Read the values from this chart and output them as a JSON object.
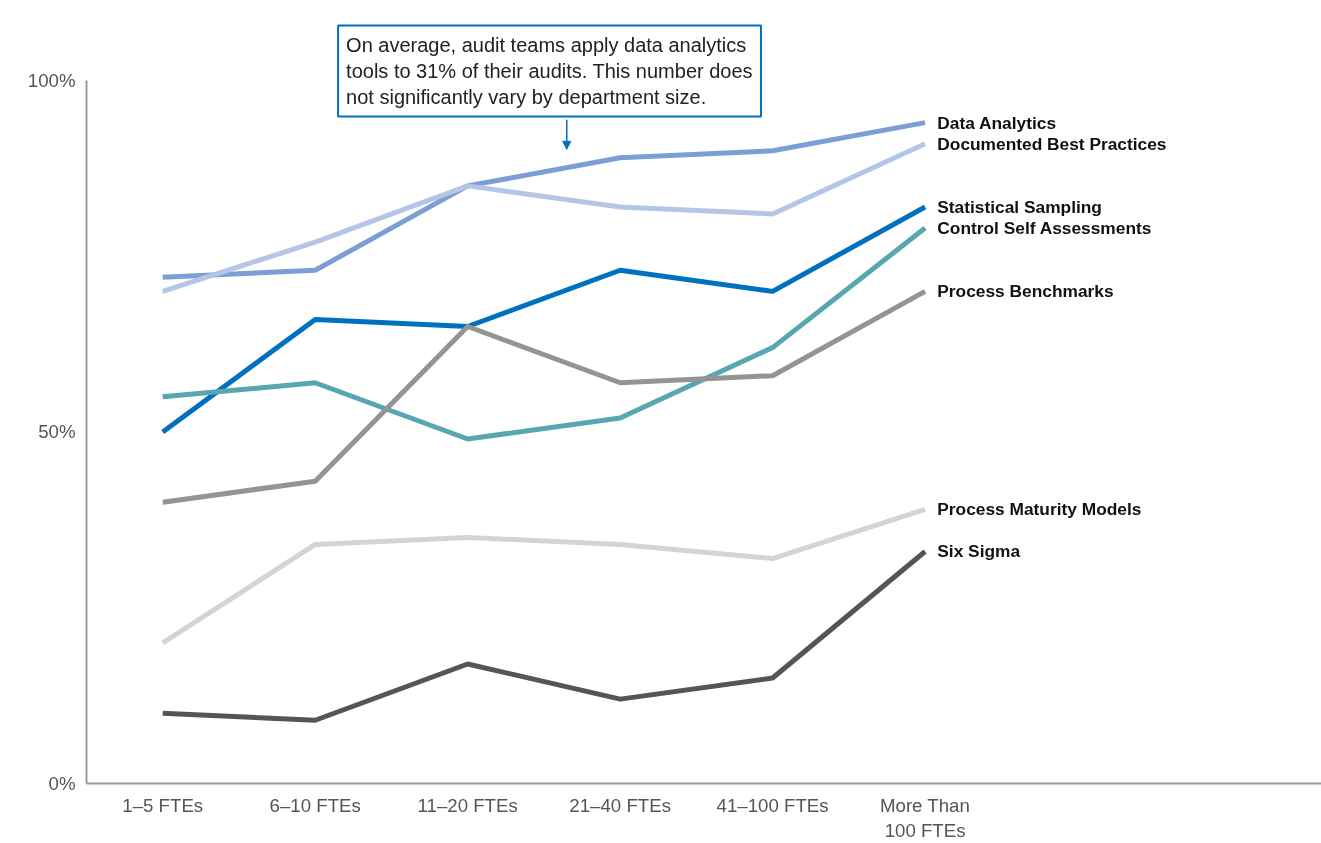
{
  "chart_data": {
    "type": "line",
    "categories": [
      "1–5 FTEs",
      "6–10 FTEs",
      "11–20 FTEs",
      "21–40 FTEs",
      "41–100 FTEs",
      "More Than\n100 FTEs"
    ],
    "series": [
      {
        "name": "Data Analytics",
        "color": "#7b9fd4",
        "values": [
          72,
          73,
          85,
          89,
          90,
          94
        ]
      },
      {
        "name": "Documented Best Practices",
        "color": "#b4c6e7",
        "values": [
          70,
          77,
          85,
          82,
          81,
          91
        ]
      },
      {
        "name": "Statistical Sampling",
        "color": "#0070c0",
        "values": [
          50,
          66,
          65,
          73,
          70,
          82
        ]
      },
      {
        "name": "Control Self Assessments",
        "color": "#58a6b0",
        "values": [
          55,
          57,
          49,
          52,
          62,
          79
        ]
      },
      {
        "name": "Process Benchmarks",
        "color": "#949494",
        "values": [
          40,
          43,
          65,
          57,
          58,
          70
        ]
      },
      {
        "name": "Process Maturity Models",
        "color": "#d4d4d4",
        "values": [
          20,
          34,
          35,
          34,
          32,
          39
        ]
      },
      {
        "name": "Six Sigma",
        "color": "#555555",
        "values": [
          10,
          9,
          17,
          12,
          15,
          33
        ]
      }
    ],
    "ylim": [
      0,
      100
    ],
    "yticks": [
      {
        "value": 0,
        "label": "0%"
      },
      {
        "value": 50,
        "label": "50%"
      },
      {
        "value": 100,
        "label": "100%"
      }
    ],
    "grid": false,
    "legend": false,
    "marker": "none",
    "line_style": "solid",
    "annotations": [
      "On average, audit teams apply data analytics tools to 31% of their audits. This number does not significantly vary by department size."
    ]
  }
}
